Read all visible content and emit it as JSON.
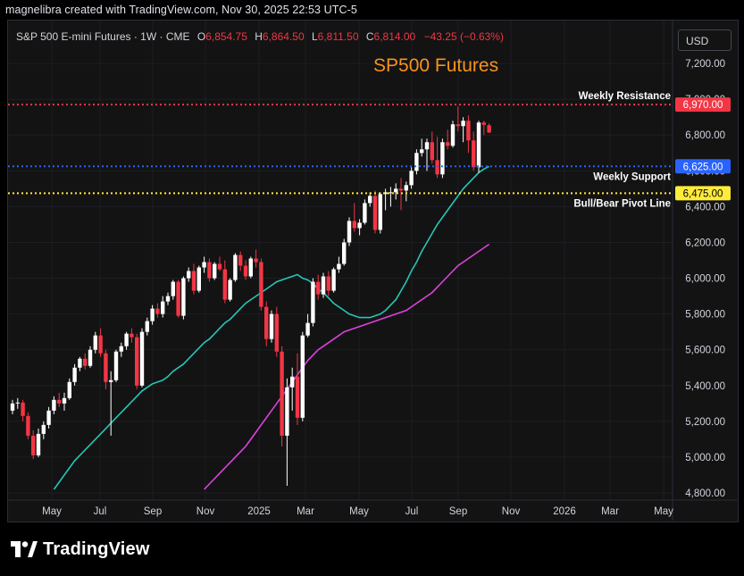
{
  "header": {
    "text": "magnelibra created with TradingView.com, Nov 30, 2025 22:53 UTC-5"
  },
  "legend": {
    "symbol": "S&P 500 E-mini Futures · 1W · CME",
    "open_k": "O",
    "open": "6,854.75",
    "high_k": "H",
    "high": "6,864.50",
    "low_k": "L",
    "low": "6,811.50",
    "close_k": "C",
    "close": "6,814.00",
    "change": "−43.25 (−0.63%)"
  },
  "currency_button": "USD",
  "brand": {
    "name": "TradingView"
  },
  "colors": {
    "up": "#ffffff",
    "down": "#f23645",
    "ma_fast": "#26c6b7",
    "ma_slow": "#e040e0",
    "resistance": "#f23645",
    "support": "#2962ff",
    "pivot": "#ffeb3b",
    "title": "#f7931a"
  },
  "chart_data": {
    "type": "candlestick",
    "title": "SP500 Futures",
    "ylim": [
      4760,
      7440
    ],
    "y_ticks": [
      4800,
      5000,
      5200,
      5400,
      5600,
      5800,
      6000,
      6200,
      6400,
      6600,
      6800,
      7000,
      7200
    ],
    "y_tick_labels": [
      "4,800.00",
      "5,000.00",
      "5,200.00",
      "5,400.00",
      "5,600.00",
      "5,800.00",
      "6,000.00",
      "6,200.00",
      "6,400.00",
      "6,600.00",
      "6,800.00",
      "7,000.00",
      "7,200.00"
    ],
    "x_labels": [
      "May",
      "Jul",
      "Sep",
      "Nov",
      "2025",
      "Mar",
      "May",
      "Jul",
      "Sep",
      "Nov",
      "2026",
      "Mar",
      "May"
    ],
    "levels": [
      {
        "name": "Weekly Resistance",
        "value": 6970,
        "value_label": "6,970.00",
        "color": "#f23645"
      },
      {
        "name": "Weekly Support",
        "value": 6625,
        "value_label": "6,625.00",
        "color": "#2962ff"
      },
      {
        "name": "Bull/Bear Pivot Line",
        "value": 6475,
        "value_label": "6,475.00",
        "color": "#ffeb3b"
      }
    ],
    "candles": [
      [
        5260,
        5320,
        5240,
        5300
      ],
      [
        5300,
        5330,
        5270,
        5305
      ],
      [
        5305,
        5320,
        5200,
        5230
      ],
      [
        5230,
        5250,
        5100,
        5120
      ],
      [
        5120,
        5150,
        4990,
        5010
      ],
      [
        5010,
        5160,
        5000,
        5130
      ],
      [
        5130,
        5200,
        5100,
        5180
      ],
      [
        5180,
        5280,
        5160,
        5260
      ],
      [
        5260,
        5340,
        5240,
        5320
      ],
      [
        5320,
        5360,
        5280,
        5300
      ],
      [
        5300,
        5360,
        5260,
        5330
      ],
      [
        5330,
        5440,
        5320,
        5420
      ],
      [
        5420,
        5520,
        5400,
        5500
      ],
      [
        5500,
        5560,
        5480,
        5550
      ],
      [
        5550,
        5580,
        5490,
        5510
      ],
      [
        5510,
        5620,
        5500,
        5600
      ],
      [
        5600,
        5700,
        5580,
        5680
      ],
      [
        5680,
        5720,
        5560,
        5580
      ],
      [
        5580,
        5600,
        5380,
        5420
      ],
      [
        5420,
        5480,
        5120,
        5430
      ],
      [
        5430,
        5600,
        5420,
        5590
      ],
      [
        5590,
        5640,
        5560,
        5620
      ],
      [
        5620,
        5700,
        5600,
        5690
      ],
      [
        5690,
        5720,
        5640,
        5670
      ],
      [
        5670,
        5690,
        5380,
        5400
      ],
      [
        5400,
        5720,
        5390,
        5700
      ],
      [
        5700,
        5780,
        5680,
        5760
      ],
      [
        5760,
        5850,
        5740,
        5830
      ],
      [
        5830,
        5860,
        5780,
        5800
      ],
      [
        5800,
        5900,
        5780,
        5870
      ],
      [
        5870,
        5920,
        5850,
        5900
      ],
      [
        5900,
        5990,
        5880,
        5980
      ],
      [
        5980,
        5990,
        5780,
        5790
      ],
      [
        5790,
        6010,
        5770,
        6000
      ],
      [
        6000,
        6060,
        5980,
        6040
      ],
      [
        6040,
        6080,
        5910,
        5930
      ],
      [
        5930,
        6070,
        5920,
        6060
      ],
      [
        6060,
        6120,
        6030,
        6090
      ],
      [
        6090,
        6110,
        5980,
        6000
      ],
      [
        6000,
        6090,
        5990,
        6080
      ],
      [
        6080,
        6120,
        6040,
        6050
      ],
      [
        6050,
        6100,
        5860,
        5880
      ],
      [
        5880,
        6000,
        5870,
        5990
      ],
      [
        5990,
        6140,
        5980,
        6130
      ],
      [
        6130,
        6150,
        6040,
        6070
      ],
      [
        6070,
        6100,
        5990,
        6010
      ],
      [
        6010,
        6120,
        6000,
        6110
      ],
      [
        6110,
        6160,
        6060,
        6090
      ],
      [
        6090,
        6110,
        5820,
        5840
      ],
      [
        5840,
        5870,
        5620,
        5660
      ],
      [
        5660,
        5820,
        5640,
        5800
      ],
      [
        5800,
        5840,
        5560,
        5590
      ],
      [
        5590,
        5620,
        5060,
        5120
      ],
      [
        5120,
        5440,
        4840,
        5390
      ],
      [
        5390,
        5500,
        5260,
        5450
      ],
      [
        5450,
        5580,
        5180,
        5220
      ],
      [
        5220,
        5700,
        5200,
        5680
      ],
      [
        5680,
        5800,
        5670,
        5750
      ],
      [
        5750,
        6000,
        5730,
        5980
      ],
      [
        5980,
        6020,
        5880,
        5910
      ],
      [
        5910,
        6030,
        5890,
        6010
      ],
      [
        6010,
        6040,
        5900,
        5930
      ],
      [
        5930,
        6060,
        5920,
        6050
      ],
      [
        6050,
        6120,
        6030,
        6080
      ],
      [
        6080,
        6220,
        6070,
        6200
      ],
      [
        6200,
        6340,
        6180,
        6320
      ],
      [
        6320,
        6420,
        6260,
        6280
      ],
      [
        6280,
        6330,
        6240,
        6310
      ],
      [
        6310,
        6440,
        6300,
        6420
      ],
      [
        6420,
        6480,
        6400,
        6460
      ],
      [
        6460,
        6490,
        6250,
        6270
      ],
      [
        6270,
        6480,
        6250,
        6470
      ],
      [
        6470,
        6500,
        6380,
        6480
      ],
      [
        6480,
        6510,
        6400,
        6480
      ],
      [
        6480,
        6530,
        6440,
        6500
      ],
      [
        6500,
        6560,
        6380,
        6490
      ],
      [
        6490,
        6540,
        6430,
        6520
      ],
      [
        6520,
        6620,
        6500,
        6600
      ],
      [
        6600,
        6720,
        6580,
        6700
      ],
      [
        6700,
        6780,
        6680,
        6720
      ],
      [
        6720,
        6780,
        6600,
        6760
      ],
      [
        6760,
        6820,
        6640,
        6660
      ],
      [
        6660,
        6790,
        6560,
        6580
      ],
      [
        6580,
        6780,
        6560,
        6760
      ],
      [
        6760,
        6830,
        6720,
        6740
      ],
      [
        6740,
        6880,
        6730,
        6860
      ],
      [
        6860,
        6960,
        6820,
        6850
      ],
      [
        6850,
        6900,
        6760,
        6880
      ],
      [
        6880,
        6910,
        6700,
        6770
      ],
      [
        6770,
        6820,
        6600,
        6620
      ],
      [
        6620,
        6880,
        6590,
        6870
      ],
      [
        6870,
        6880,
        6800,
        6857
      ],
      [
        6855,
        6865,
        6812,
        6814
      ]
    ],
    "ma_fast": [
      [
        4820,
        4860,
        4900,
        4940,
        4980,
        5010,
        5040,
        5070,
        5100,
        5130,
        5160,
        5190,
        5220,
        5250,
        5280,
        5310,
        5340,
        5370,
        5390,
        5410,
        5420,
        5430,
        5450,
        5480,
        5500,
        5520,
        5550,
        5580,
        5610,
        5640,
        5660,
        5690,
        5720,
        5750,
        5770,
        5800,
        5830,
        5860,
        5880,
        5900,
        5920,
        5940,
        5960,
        5980,
        5990,
        6000,
        6010,
        6020,
        6000,
        5990,
        5970,
        5940,
        5920,
        5890,
        5860,
        5840,
        5820,
        5800,
        5790,
        5780,
        5780,
        5780,
        5790,
        5800,
        5820,
        5850,
        5880,
        5930,
        5980,
        6040,
        6090,
        6150,
        6200,
        6250,
        6300,
        6340,
        6380,
        6420,
        6460,
        6500,
        6530,
        6560,
        6590,
        6610,
        6625
      ]
    ],
    "ma_slow": [
      4820,
      4850,
      4880,
      4910,
      4940,
      4970,
      5000,
      5030,
      5060,
      5100,
      5140,
      5180,
      5220,
      5260,
      5300,
      5340,
      5380,
      5420,
      5460,
      5500,
      5540,
      5570,
      5600,
      5620,
      5640,
      5660,
      5680,
      5700,
      5710,
      5720,
      5730,
      5740,
      5750,
      5760,
      5770,
      5780,
      5790,
      5800,
      5810,
      5820,
      5840,
      5860,
      5880,
      5900,
      5920,
      5950,
      5980,
      6010,
      6040,
      6070,
      6090,
      6110,
      6130,
      6150,
      6170,
      6190
    ]
  }
}
